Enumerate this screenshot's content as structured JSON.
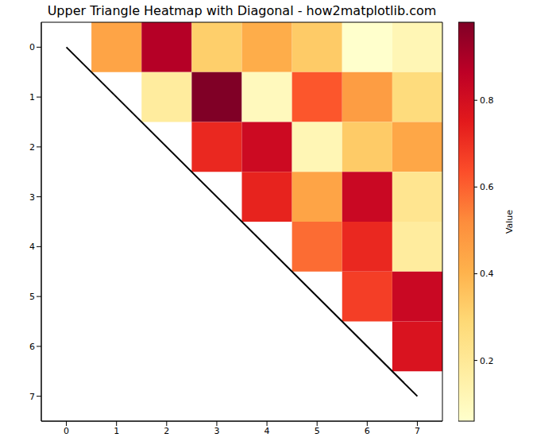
{
  "chart_data": {
    "type": "heatmap",
    "title": "Upper Triangle Heatmap with Diagonal - how2matplotlib.com",
    "xlim": [
      -0.5,
      7.5
    ],
    "ylim": [
      -0.5,
      7.5
    ],
    "xticks": [
      0,
      1,
      2,
      3,
      4,
      5,
      6,
      7
    ],
    "yticks": [
      0,
      1,
      2,
      3,
      4,
      5,
      6,
      7
    ],
    "grid": false,
    "cells": [
      [
        null,
        0.45,
        0.88,
        0.32,
        0.42,
        0.33,
        0.06,
        0.12
      ],
      [
        null,
        null,
        0.18,
        0.98,
        0.1,
        0.62,
        0.47,
        0.27
      ],
      [
        null,
        null,
        null,
        0.72,
        0.82,
        0.12,
        0.33,
        0.44
      ],
      [
        null,
        null,
        null,
        null,
        0.73,
        0.45,
        0.83,
        0.22
      ],
      [
        null,
        null,
        null,
        null,
        null,
        0.58,
        0.72,
        0.18
      ],
      [
        null,
        null,
        null,
        null,
        null,
        null,
        0.67,
        0.83
      ],
      [
        null,
        null,
        null,
        null,
        null,
        null,
        null,
        0.78
      ],
      [
        null,
        null,
        null,
        null,
        null,
        null,
        null,
        null
      ]
    ],
    "colorbar": {
      "label": "Value",
      "range": [
        0.06,
        0.98
      ],
      "ticks": [
        0.2,
        0.4,
        0.6,
        0.8
      ]
    },
    "diagonal": {
      "x": [
        0,
        7
      ],
      "y": [
        0,
        7
      ],
      "color": "#000000"
    }
  }
}
